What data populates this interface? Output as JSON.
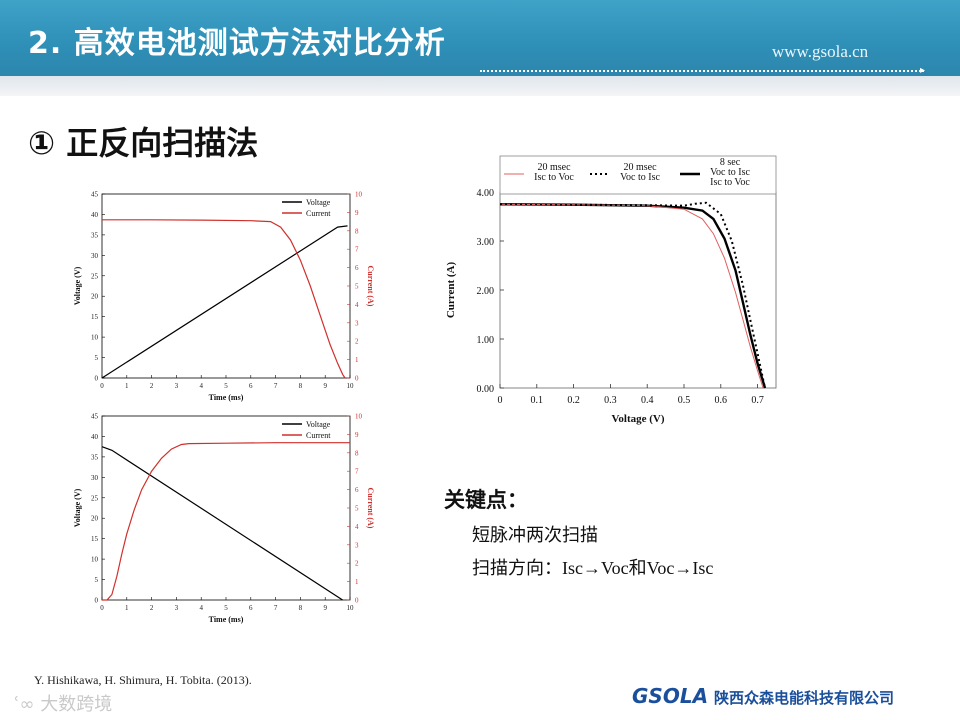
{
  "header": {
    "title": "2. 高效电池测试方法对比分析",
    "site": "www.gsola.cn"
  },
  "section_title": "① 正反向扫描法",
  "key_points": {
    "title": "关键点：",
    "lines": [
      "短脉冲两次扫描",
      "扫描方向：",
      "Isc→Voc",
      "和",
      "Voc→Isc"
    ]
  },
  "reference": "Y. Hishikawa,  H. Shimura,  H. Tobita. (2013).",
  "watermark": "大数跨境",
  "logo": {
    "mark": "GSOLA",
    "company": "陕西众森电能科技有限公司"
  },
  "colors": {
    "voltage": "#000000",
    "current": "#d0302c",
    "header": "#2e8fb7"
  },
  "chart_data": [
    {
      "type": "line",
      "xlabel": "Time (ms)",
      "ylabel": "Voltage (V)",
      "y2label": "Current (A)",
      "xlim": [
        0,
        10
      ],
      "ylim": [
        0,
        45
      ],
      "y2lim": [
        0,
        10
      ],
      "xticks": [
        0,
        1,
        2,
        3,
        4,
        5,
        6,
        7,
        8,
        9,
        10
      ],
      "yticks": [
        0,
        5,
        10,
        15,
        20,
        25,
        30,
        35,
        40,
        45
      ],
      "y2ticks": [
        0,
        1,
        2,
        3,
        4,
        5,
        6,
        7,
        8,
        9,
        10
      ],
      "legend_position": "top-right",
      "series": [
        {
          "name": "Voltage",
          "axis": "left",
          "x": [
            0,
            9.5,
            9.9
          ],
          "y": [
            0,
            36.9,
            37.2
          ]
        },
        {
          "name": "Current",
          "axis": "right",
          "x": [
            0,
            2,
            4,
            6,
            6.8,
            7.2,
            7.6,
            8,
            8.4,
            8.8,
            9.2,
            9.5,
            9.7,
            9.8
          ],
          "y": [
            8.6,
            8.6,
            8.58,
            8.55,
            8.5,
            8.2,
            7.5,
            6.4,
            5.0,
            3.4,
            1.8,
            0.8,
            0.2,
            0
          ]
        }
      ]
    },
    {
      "type": "line",
      "xlabel": "Time (ms)",
      "ylabel": "Voltage (V)",
      "y2label": "Current (A)",
      "xlim": [
        0,
        10
      ],
      "ylim": [
        0,
        45
      ],
      "y2lim": [
        0,
        10
      ],
      "xticks": [
        0,
        1,
        2,
        3,
        4,
        5,
        6,
        7,
        8,
        9,
        10
      ],
      "yticks": [
        0,
        5,
        10,
        15,
        20,
        25,
        30,
        35,
        40,
        45
      ],
      "y2ticks": [
        0,
        1,
        2,
        3,
        4,
        5,
        6,
        7,
        8,
        9,
        10
      ],
      "legend_position": "top-right",
      "series": [
        {
          "name": "Voltage",
          "axis": "left",
          "x": [
            0,
            0.4,
            9.7
          ],
          "y": [
            37.5,
            36.6,
            0
          ]
        },
        {
          "name": "Current",
          "axis": "right",
          "x": [
            0,
            0.2,
            0.4,
            0.6,
            0.8,
            1.0,
            1.3,
            1.6,
            2.0,
            2.4,
            2.8,
            3.2,
            3.5,
            5,
            7,
            9,
            10
          ],
          "y": [
            0,
            0,
            0.3,
            1.3,
            2.5,
            3.6,
            4.9,
            6.0,
            7.0,
            7.7,
            8.2,
            8.45,
            8.5,
            8.52,
            8.55,
            8.55,
            8.55
          ]
        }
      ]
    },
    {
      "type": "line",
      "xlabel": "Voltage (V)",
      "ylabel": "Current (A)",
      "xlim": [
        0,
        0.75
      ],
      "ylim": [
        0,
        4
      ],
      "xticks": [
        0,
        0.1,
        0.2,
        0.3,
        0.4,
        0.5,
        0.6,
        0.7
      ],
      "xtick_labels": [
        "0",
        "0.1",
        "0.2",
        "0.3",
        "0.4",
        "0.5",
        "0.6",
        "0.7"
      ],
      "yticks": [
        0,
        1,
        2,
        3,
        4
      ],
      "ytick_labels": [
        "0.00",
        "1.00",
        "2.00",
        "3.00",
        "4.00"
      ],
      "legend_position": "top",
      "series": [
        {
          "name": "20 msec\nIsc to Voc",
          "style": "thin-red",
          "x": [
            0,
            0.2,
            0.4,
            0.5,
            0.55,
            0.58,
            0.61,
            0.64,
            0.66,
            0.68,
            0.7,
            0.715
          ],
          "y": [
            3.75,
            3.74,
            3.72,
            3.65,
            3.45,
            3.15,
            2.65,
            1.95,
            1.4,
            0.85,
            0.35,
            0
          ]
        },
        {
          "name": "20 msec\nVoc to Isc",
          "style": "dotted-black",
          "x": [
            0,
            0.2,
            0.4,
            0.5,
            0.53,
            0.56,
            0.6,
            0.63,
            0.66,
            0.68,
            0.7,
            0.72
          ],
          "y": [
            3.75,
            3.74,
            3.73,
            3.72,
            3.76,
            3.78,
            3.55,
            3.0,
            2.1,
            1.4,
            0.7,
            0
          ]
        },
        {
          "name": "8 sec\nVoc to Isc\nIsc to Voc",
          "style": "thick-black",
          "x": [
            0,
            0.2,
            0.4,
            0.5,
            0.55,
            0.58,
            0.61,
            0.64,
            0.66,
            0.68,
            0.7,
            0.72
          ],
          "y": [
            3.75,
            3.74,
            3.72,
            3.68,
            3.62,
            3.45,
            3.05,
            2.4,
            1.75,
            1.1,
            0.5,
            0
          ]
        }
      ]
    }
  ]
}
